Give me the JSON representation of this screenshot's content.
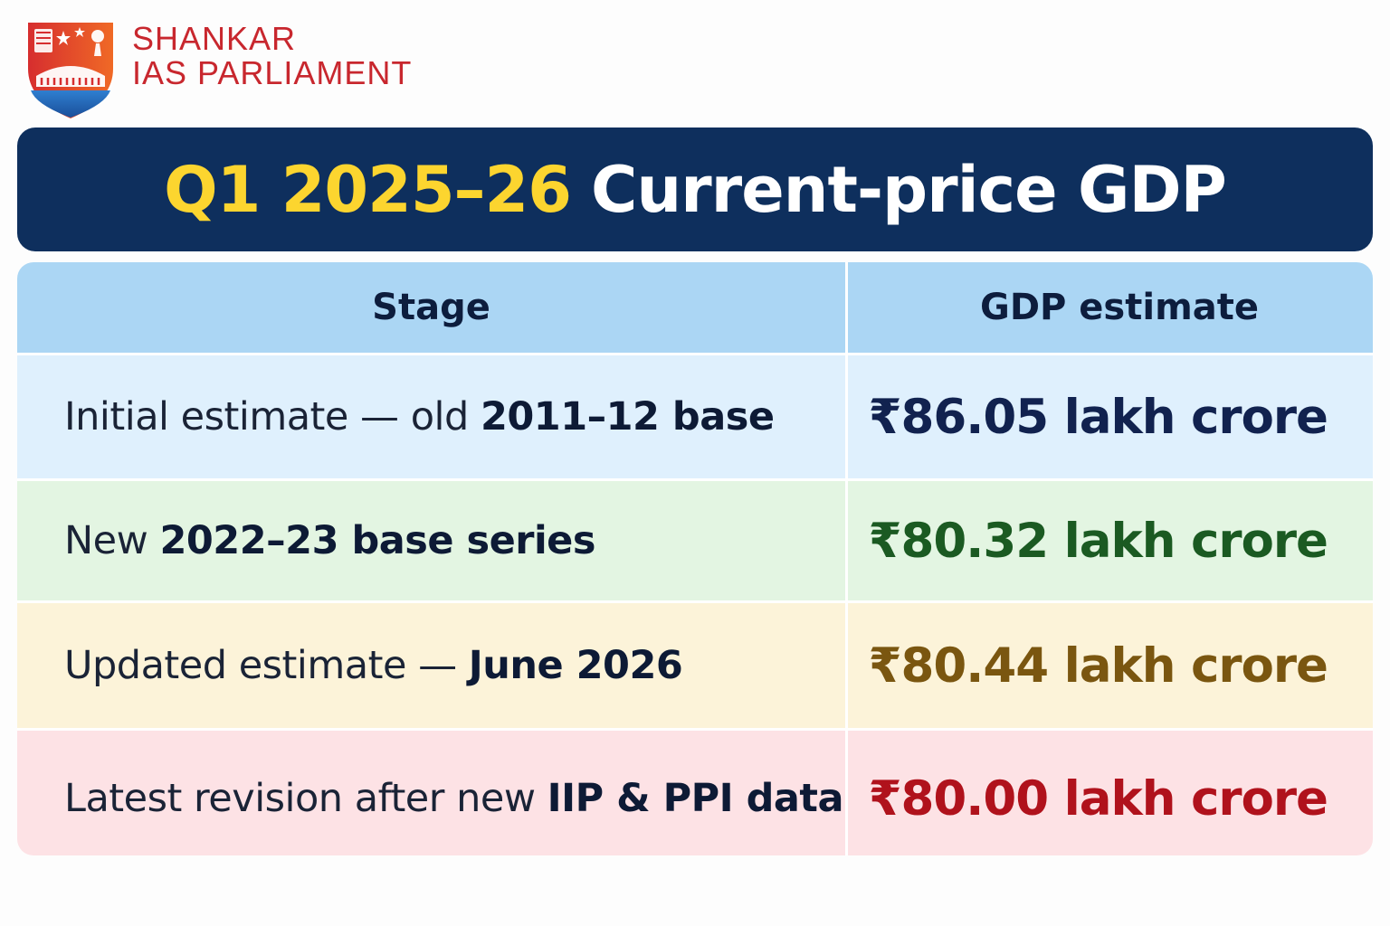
{
  "brand": {
    "line1": "SHANKAR",
    "line2": "IAS PARLIAMENT"
  },
  "title": {
    "highlight": "Q1 2025–26",
    "rest": "Current-price GDP",
    "highlight_color": "#fcd52f",
    "background_color": "#0e2f5d"
  },
  "table": {
    "headers": [
      "Stage",
      "GDP estimate"
    ],
    "rows": [
      {
        "stage_plain": "Initial estimate — old ",
        "stage_bold": "2011–12 base",
        "value": "₹86.05 lakh crore",
        "value_color": "#11224f",
        "row_color": "#dff0fd"
      },
      {
        "stage_plain": "New ",
        "stage_bold": "2022–23 base series",
        "value": "₹80.32 lakh crore",
        "value_color": "#1b5a22",
        "row_color": "#e3f5e2"
      },
      {
        "stage_plain": "Updated estimate — ",
        "stage_bold": "June 2026",
        "value": "₹80.44 lakh crore",
        "value_color": "#7a5610",
        "row_color": "#fcf3d9"
      },
      {
        "stage_plain": "Latest revision after new ",
        "stage_bold": "IIP & PPI data",
        "value": "₹80.00 lakh crore",
        "value_color": "#b0121c",
        "row_color": "#fde2e5"
      }
    ]
  }
}
